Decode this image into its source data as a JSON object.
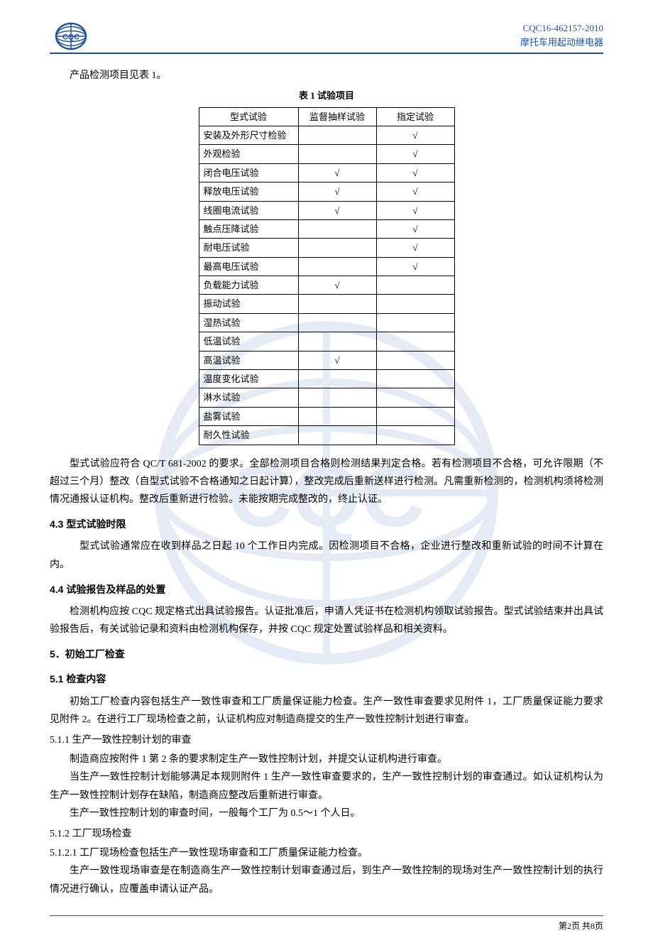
{
  "header": {
    "doc_code": "CQC16-462157-2010",
    "doc_title": "摩托车用起动继电器"
  },
  "intro_line": "产品检测项目见表 1。",
  "table": {
    "caption": "表 1 试验项目",
    "col1": "型式试验",
    "col2": "监督抽样试验",
    "col3": "指定试验",
    "check": "√",
    "rows": [
      {
        "label": "安装及外形尺寸检验",
        "c2": "",
        "c3": "√"
      },
      {
        "label": "外观检验",
        "c2": "",
        "c3": "√"
      },
      {
        "label": "闭合电压试验",
        "c2": "√",
        "c3": "√"
      },
      {
        "label": "释放电压试验",
        "c2": "√",
        "c3": "√"
      },
      {
        "label": "线圈电流试验",
        "c2": "√",
        "c3": "√"
      },
      {
        "label": "触点压降试验",
        "c2": "",
        "c3": "√"
      },
      {
        "label": "耐电压试验",
        "c2": "",
        "c3": "√"
      },
      {
        "label": "最高电压试验",
        "c2": "",
        "c3": "√"
      },
      {
        "label": "负载能力试验",
        "c2": "√",
        "c3": ""
      },
      {
        "label": "振动试验",
        "c2": "",
        "c3": ""
      },
      {
        "label": "湿热试验",
        "c2": "",
        "c3": ""
      },
      {
        "label": "低温试验",
        "c2": "",
        "c3": ""
      },
      {
        "label": "高温试验",
        "c2": "√",
        "c3": ""
      },
      {
        "label": "温度变化试验",
        "c2": "",
        "c3": ""
      },
      {
        "label": "淋水试验",
        "c2": "",
        "c3": ""
      },
      {
        "label": "盐雾试验",
        "c2": "",
        "c3": ""
      },
      {
        "label": "耐久性试验",
        "c2": "",
        "c3": ""
      }
    ],
    "col_widths": {
      "c1": 140,
      "c2": 110,
      "c3": 110
    }
  },
  "p1": "型式试验应符合 QC/T 681-2002 的要求。全部检测项目合格则检测结果判定合格。若有检测项目不合格，可允许限期（不超过三个月）整改（自型式试验不合格通知之日起计算），整改完成后重新送样进行检测。凡需重新检测的，检测机构须将检测情况通报认证机构。整改后重新进行检验。未能按期完成整改的，终止认证。",
  "s43_title": "4.3 型式试验时限",
  "s43_p": "型式试验通常应在收到样品之日起 10 个工作日内完成。因检测项目不合格，企业进行整改和重新试验的时间不计算在内。",
  "s44_title": "4.4 试验报告及样品的处置",
  "s44_p": "检测机构应按 CQC 规定格式出具试验报告。认证批准后，申请人凭证书在检测机构领取试验报告。型式试验结束并出具试验报告后，有关试验记录和资料由检测机构保存，并按 CQC 规定处置试验样品和相关资料。",
  "s5_title": "5．初始工厂检查",
  "s51_title": "5.1 检查内容",
  "s51_p": "初始工厂检查内容包括生产一致性审查和工厂质量保证能力检查。生产一致性审查要求见附件 1，工厂质量保证能力要求见附件 2。在进行工厂现场检查之前，认证机构应对制造商提交的生产一致性控制计划进行审查。",
  "s511_title": "5.1.1 生产一致性控制计划的审查",
  "s511_p1": "制造商应按附件 1 第 2 条的要求制定生产一致性控制计划，并提交认证机构进行审查。",
  "s511_p2": "当生产一致性控制计划能够满足本规则附件 1 生产一致性审查要求的，生产一致性控制计划的审查通过。如认证机构认为生产一致性控制计划存在缺陷，制造商应整改后重新进行审查。",
  "s511_p3": "生产一致性控制计划的审查时间，一般每个工厂为 0.5～1 个人日。",
  "s512_title": "5.1.2 工厂现场检查",
  "s5121_title": "5.1.2.1 工厂现场检查包括生产一致性现场审查和工厂质量保证能力检查。",
  "s5121_p": "生产一致性现场审查是在制造商生产一致性控制计划审查通过后，到生产一致性控制的现场对生产一致性控制计划的执行情况进行确认，应覆盖申请认证产品。",
  "footer": "第2页 共8页",
  "colors": {
    "accent": "#2050a0",
    "text": "#000000",
    "background": "#ffffff",
    "watermark": "#3060b0"
  }
}
